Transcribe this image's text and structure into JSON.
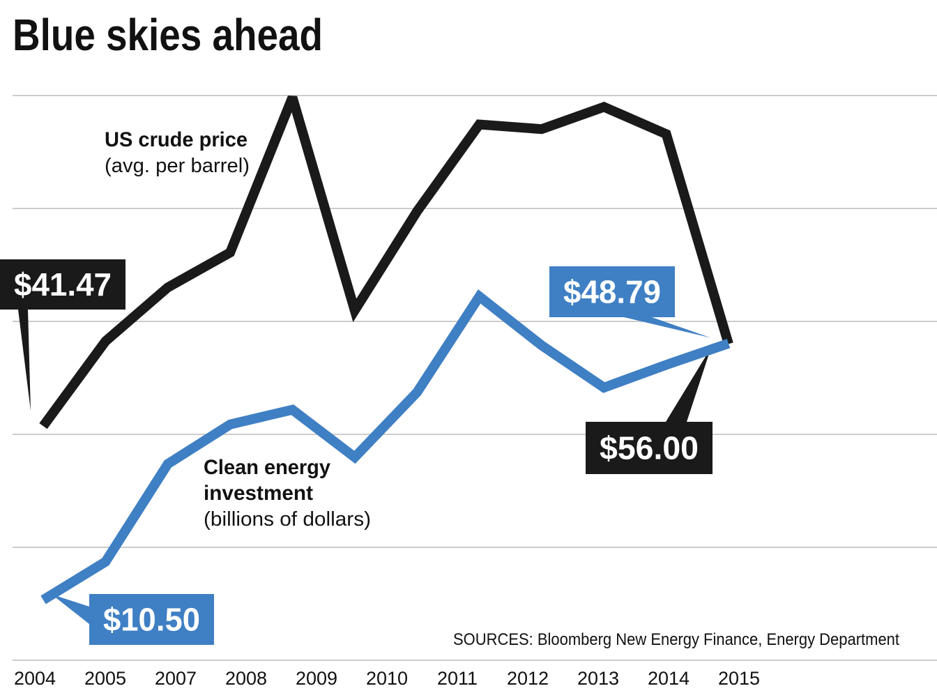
{
  "chart_data": {
    "type": "line",
    "title": "Blue skies ahead",
    "source": "SOURCES: Bloomberg New Energy Finance, Energy Department",
    "categories": [
      "2004",
      "2005",
      null,
      "2007",
      "2008",
      "2009",
      "2010",
      "2011",
      "2012",
      "2013",
      "2014",
      "2015"
    ],
    "ylim": [
      0,
      100
    ],
    "y2lim": [
      1.5,
      85.8
    ],
    "yticks": [
      0,
      20,
      40,
      60,
      80,
      100
    ],
    "grid": true,
    "series": [
      {
        "label_lines": [
          "US crude price"
        ],
        "unit": "(avg. per barrel)",
        "color": "#1a1a1a",
        "values": [
          41.47,
          56.49,
          66.02,
          72.2,
          99.67,
          61.95,
          79.48,
          94.88,
          94.05,
          97.98,
          93.17,
          56.0
        ],
        "value_labels": [
          "$41.47",
          null,
          null,
          null,
          null,
          null,
          null,
          null,
          null,
          null,
          null,
          "$56.00"
        ]
      },
      {
        "label_lines": [
          "Clean energy",
          "investment"
        ],
        "unit": "(billions of dollars)",
        "color": "#3f7fc4",
        "axis": "y2",
        "values": [
          10.5,
          16.2,
          30.8,
          36.7,
          38.9,
          31.8,
          41.5,
          55.8,
          48.5,
          42.2,
          45.6,
          48.79
        ],
        "value_labels": [
          "$10.50",
          null,
          null,
          null,
          null,
          null,
          null,
          null,
          null,
          null,
          null,
          "$48.79"
        ]
      }
    ]
  }
}
